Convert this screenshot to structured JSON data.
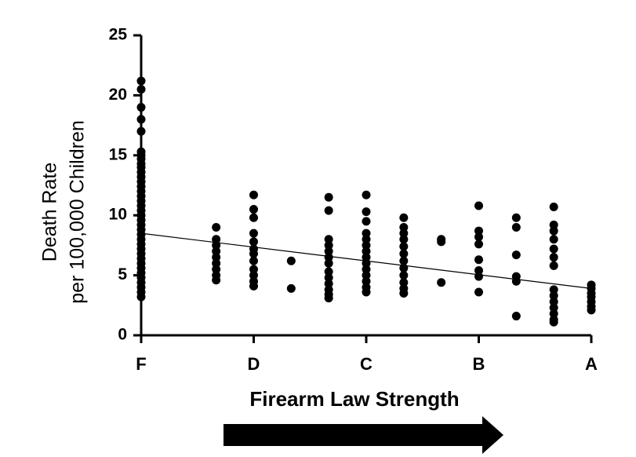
{
  "chart_data": {
    "type": "scatter",
    "x_label": "Firearm Law Strength",
    "y_label": [
      "Death Rate",
      "per 100,000 Children"
    ],
    "color": "#000000",
    "xlim": [
      0,
      12
    ],
    "ylim": [
      0,
      25
    ],
    "xticks": [
      {
        "value": 0,
        "label": "F"
      },
      {
        "value": 3,
        "label": "D"
      },
      {
        "value": 6,
        "label": "C"
      },
      {
        "value": 9,
        "label": "B"
      },
      {
        "value": 12,
        "label": "A"
      }
    ],
    "yticks": [
      0,
      5,
      10,
      15,
      20,
      25
    ],
    "x": [
      0,
      0,
      0,
      0,
      0,
      0,
      0,
      0,
      0,
      0,
      0,
      0,
      0,
      0,
      0,
      0,
      0,
      0,
      0,
      0,
      0,
      0,
      0,
      0,
      0,
      0,
      0,
      0,
      0,
      0,
      0,
      0,
      0,
      0,
      0,
      0,
      0,
      2,
      2,
      2,
      2,
      2,
      2,
      2,
      2,
      2,
      3,
      3,
      3,
      3,
      3,
      3,
      3,
      3,
      3,
      3,
      3,
      3,
      4,
      4,
      5,
      5,
      5,
      5,
      5,
      5,
      5,
      5,
      5,
      5,
      5,
      5,
      5,
      6,
      6,
      6,
      6,
      6,
      6,
      6,
      6,
      6,
      6,
      6,
      6,
      6,
      6,
      7,
      7,
      7,
      7,
      7,
      7,
      7,
      7,
      7,
      7,
      7,
      7,
      8,
      8,
      8,
      9,
      9,
      9,
      9,
      9,
      9,
      9,
      9,
      10,
      10,
      10,
      10,
      10,
      10,
      11,
      11,
      11,
      11,
      11,
      11,
      11,
      11,
      11,
      11,
      11,
      11,
      11,
      11,
      12,
      12,
      12,
      12,
      12,
      12,
      12
    ],
    "values": [
      21.2,
      20.5,
      19,
      18,
      17,
      15.3,
      15,
      14.7,
      14.3,
      14,
      13.6,
      13.2,
      12.8,
      12.4,
      12,
      11.6,
      11.2,
      10.8,
      10.4,
      10,
      9.6,
      9.2,
      8.8,
      8.4,
      8,
      7.6,
      7.2,
      6.8,
      6.4,
      6,
      5.6,
      5.2,
      4.8,
      4.4,
      4,
      3.6,
      3.2,
      9,
      8,
      7.5,
      7,
      6.5,
      6,
      5.5,
      5,
      4.6,
      11.7,
      10.5,
      9.8,
      8.5,
      7.8,
      7.2,
      6.8,
      6.2,
      5.5,
      5,
      4.5,
      4.1,
      6.2,
      3.9,
      11.5,
      10.4,
      8,
      7.5,
      7,
      6.5,
      6,
      5.3,
      4.8,
      4.3,
      3.8,
      3.4,
      3.1,
      11.7,
      10.3,
      9.5,
      8.5,
      8,
      7.5,
      7,
      6.5,
      6,
      5.5,
      5,
      4.5,
      4,
      3.6,
      9.8,
      9,
      8.5,
      8,
      7.4,
      6.8,
      6.2,
      5.6,
      5,
      4.4,
      3.9,
      3.5,
      8,
      7.8,
      4.4,
      10.8,
      8.7,
      8.2,
      7.6,
      6.3,
      5.4,
      4.9,
      3.6,
      9.8,
      9,
      6.7,
      4.9,
      4.5,
      1.6,
      10.7,
      9.2,
      8.7,
      8,
      7.2,
      6.5,
      5.8,
      3.8,
      3.3,
      2.8,
      2.3,
      1.8,
      1.3,
      1.1,
      4.2,
      3.9,
      3.5,
      3.2,
      2.8,
      2.4,
      2.1
    ],
    "trendline": {
      "x": [
        0,
        12
      ],
      "y": [
        8.5,
        3.9
      ]
    }
  }
}
